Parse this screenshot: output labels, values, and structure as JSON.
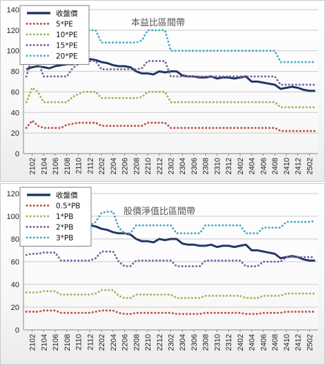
{
  "chart_data": [
    {
      "type": "line",
      "title": "本益比區間帶",
      "ylim": [
        0,
        140
      ],
      "yticks": [
        0,
        20,
        40,
        60,
        80,
        100,
        120,
        140
      ],
      "grid": true,
      "legend_position": "top-left",
      "x": [
        "2101",
        "2102",
        "2103",
        "2104",
        "2105",
        "2106",
        "2107",
        "2108",
        "2109",
        "2110",
        "2111",
        "2112",
        "2201",
        "2202",
        "2203",
        "2204",
        "2205",
        "2206",
        "2207",
        "2208",
        "2209",
        "2210",
        "2211",
        "2212",
        "2301",
        "2302",
        "2303",
        "2304",
        "2305",
        "2306",
        "2307",
        "2308",
        "2309",
        "2310",
        "2311",
        "2312",
        "2401",
        "2402",
        "2403",
        "2404",
        "2405",
        "2406",
        "2407",
        "2408",
        "2409",
        "2410",
        "2411",
        "2412",
        "2501",
        "2502",
        "2503"
      ],
      "x_tick_labels": [
        "2102",
        "2104",
        "2106",
        "2108",
        "2110",
        "2112",
        "2202",
        "2204",
        "2206",
        "2208",
        "2210",
        "2212",
        "2302",
        "2304",
        "2306",
        "2308",
        "2310",
        "2312",
        "2402",
        "2404",
        "2406",
        "2408",
        "2410",
        "2412",
        "2502"
      ],
      "series": [
        {
          "name": "收盤價",
          "color": "#1f3864",
          "style": "solid",
          "values": [
            82,
            84,
            85,
            84,
            83,
            85,
            86,
            87,
            87,
            88,
            89,
            92,
            91,
            89,
            88,
            86,
            85,
            85,
            84,
            80,
            78,
            78,
            77,
            80,
            79,
            80,
            80,
            76,
            75,
            75,
            74,
            74,
            75,
            73,
            74,
            74,
            73,
            74,
            75,
            70,
            70,
            69,
            68,
            67,
            63,
            64,
            65,
            64,
            62,
            61,
            61
          ]
        },
        {
          "name": "5*PE",
          "color": "#c0504d",
          "style": "dotted",
          "values": [
            25,
            32,
            27,
            25,
            25,
            25,
            25,
            28,
            29,
            30,
            30,
            30,
            30,
            27,
            27,
            27,
            27,
            27,
            27,
            27,
            27,
            30,
            30,
            30,
            30,
            25,
            25,
            25,
            25,
            25,
            25,
            25,
            25,
            25,
            25,
            25,
            25,
            25,
            25,
            25,
            25,
            25,
            25,
            25,
            22,
            22,
            22,
            22,
            22,
            22,
            22
          ]
        },
        {
          "name": "10*PE",
          "color": "#9bbb59",
          "style": "dotted",
          "values": [
            50,
            64,
            60,
            50,
            50,
            50,
            50,
            50,
            55,
            58,
            60,
            60,
            60,
            54,
            54,
            54,
            54,
            54,
            54,
            54,
            55,
            60,
            60,
            60,
            60,
            50,
            50,
            50,
            50,
            50,
            50,
            50,
            50,
            50,
            50,
            50,
            50,
            50,
            50,
            50,
            50,
            50,
            50,
            50,
            45,
            45,
            45,
            45,
            45,
            45,
            45
          ]
        },
        {
          "name": "15*PE",
          "color": "#8064a2",
          "style": "dotted",
          "values": [
            75,
            95,
            90,
            75,
            75,
            75,
            75,
            75,
            83,
            87,
            90,
            90,
            90,
            82,
            82,
            82,
            82,
            82,
            82,
            82,
            83,
            90,
            90,
            90,
            90,
            75,
            75,
            75,
            75,
            75,
            75,
            75,
            75,
            75,
            75,
            75,
            75,
            75,
            75,
            75,
            75,
            75,
            75,
            75,
            67,
            67,
            67,
            67,
            67,
            67,
            67
          ]
        },
        {
          "name": "20*PE",
          "color": "#4bacc6",
          "style": "dotted",
          "values": [
            100,
            128,
            120,
            100,
            100,
            100,
            100,
            100,
            110,
            115,
            120,
            120,
            120,
            108,
            108,
            108,
            108,
            108,
            108,
            108,
            110,
            120,
            120,
            120,
            120,
            100,
            100,
            100,
            100,
            100,
            100,
            100,
            100,
            100,
            100,
            100,
            100,
            100,
            100,
            100,
            100,
            100,
            100,
            100,
            89,
            89,
            89,
            89,
            89,
            89,
            89
          ]
        }
      ]
    },
    {
      "type": "line",
      "title": "股價淨值比區間帶",
      "ylim": [
        0,
        120
      ],
      "yticks": [
        0,
        20,
        40,
        60,
        80,
        100,
        120
      ],
      "grid": true,
      "legend_position": "top-left",
      "x": [
        "2101",
        "2102",
        "2103",
        "2104",
        "2105",
        "2106",
        "2107",
        "2108",
        "2109",
        "2110",
        "2111",
        "2112",
        "2201",
        "2202",
        "2203",
        "2204",
        "2205",
        "2206",
        "2207",
        "2208",
        "2209",
        "2210",
        "2211",
        "2212",
        "2301",
        "2302",
        "2303",
        "2304",
        "2305",
        "2306",
        "2307",
        "2308",
        "2309",
        "2310",
        "2311",
        "2312",
        "2401",
        "2402",
        "2403",
        "2404",
        "2405",
        "2406",
        "2407",
        "2408",
        "2409",
        "2410",
        "2411",
        "2412",
        "2501",
        "2502",
        "2503"
      ],
      "x_tick_labels": [
        "2102",
        "2104",
        "2106",
        "2108",
        "2110",
        "2112",
        "2202",
        "2204",
        "2206",
        "2208",
        "2210",
        "2212",
        "2302",
        "2304",
        "2306",
        "2308",
        "2310",
        "2312",
        "2402",
        "2404",
        "2406",
        "2408",
        "2410",
        "2412",
        "2502"
      ],
      "series": [
        {
          "name": "收盤價",
          "color": "#1f3864",
          "style": "solid",
          "values": [
            82,
            84,
            85,
            84,
            83,
            85,
            86,
            87,
            87,
            88,
            89,
            92,
            91,
            89,
            88,
            86,
            85,
            85,
            84,
            80,
            78,
            78,
            77,
            80,
            79,
            80,
            80,
            76,
            75,
            75,
            74,
            74,
            75,
            73,
            74,
            74,
            73,
            74,
            75,
            70,
            70,
            69,
            68,
            67,
            63,
            64,
            65,
            64,
            62,
            61,
            61
          ]
        },
        {
          "name": "0.5*PB",
          "color": "#c0504d",
          "style": "dotted",
          "values": [
            16,
            16,
            16,
            17,
            17,
            17,
            15,
            15,
            15,
            15,
            15,
            15,
            16,
            17,
            17,
            17,
            15,
            14,
            14,
            15,
            15,
            15,
            15,
            15,
            15,
            15,
            14,
            14,
            14,
            14,
            14,
            15,
            15,
            15,
            15,
            15,
            15,
            15,
            14,
            14,
            14,
            15,
            15,
            15,
            15,
            16,
            16,
            16,
            16,
            16,
            16
          ]
        },
        {
          "name": "1*PB",
          "color": "#9bbb59",
          "style": "dotted",
          "values": [
            33,
            33,
            33,
            34,
            34,
            34,
            31,
            31,
            31,
            31,
            31,
            31,
            32,
            35,
            35,
            35,
            30,
            28,
            28,
            31,
            31,
            31,
            31,
            31,
            31,
            31,
            28,
            28,
            28,
            28,
            28,
            30,
            30,
            30,
            30,
            30,
            30,
            30,
            28,
            28,
            28,
            30,
            30,
            30,
            30,
            32,
            32,
            32,
            32,
            32,
            32
          ]
        },
        {
          "name": "2*PB",
          "color": "#8064a2",
          "style": "dotted",
          "values": [
            66,
            67,
            67,
            68,
            68,
            68,
            61,
            61,
            61,
            61,
            61,
            61,
            63,
            69,
            69,
            69,
            60,
            56,
            56,
            61,
            61,
            61,
            61,
            61,
            61,
            61,
            56,
            56,
            56,
            56,
            56,
            61,
            61,
            61,
            61,
            61,
            61,
            61,
            56,
            56,
            56,
            60,
            60,
            60,
            60,
            64,
            64,
            64,
            64,
            64,
            64
          ]
        },
        {
          "name": "3*PB",
          "color": "#4bacc6",
          "style": "dotted",
          "values": [
            99,
            100,
            100,
            102,
            102,
            102,
            92,
            92,
            92,
            92,
            92,
            92,
            95,
            103,
            104,
            104,
            90,
            85,
            85,
            92,
            92,
            92,
            92,
            92,
            92,
            92,
            85,
            85,
            85,
            85,
            85,
            92,
            92,
            92,
            92,
            92,
            92,
            92,
            85,
            85,
            85,
            90,
            90,
            90,
            90,
            95,
            95,
            95,
            95,
            95,
            96
          ]
        }
      ]
    }
  ]
}
